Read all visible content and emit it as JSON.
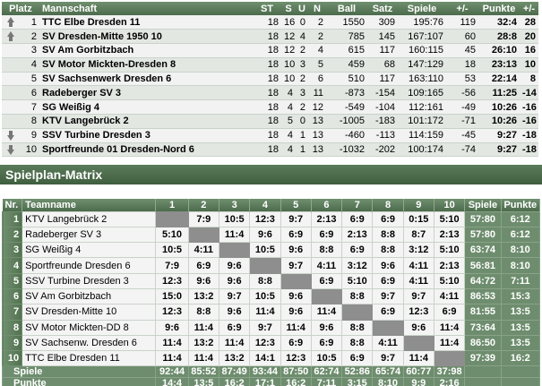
{
  "standings": {
    "headers": [
      "Platz",
      "Mannschaft",
      "ST",
      "S",
      "U",
      "N",
      "Ball",
      "Satz",
      "Spiele",
      "+/-",
      "Punkte",
      "+/-"
    ],
    "rows": [
      {
        "trend": "up",
        "place": "1",
        "team": "TTC Elbe Dresden 11",
        "st": "18",
        "s": "16",
        "u": "0",
        "n": "2",
        "ball": "1550",
        "satz": "309",
        "spiele": "195:76",
        "diff": "119",
        "punkte": "32:4",
        "pdiff": "28"
      },
      {
        "trend": "up",
        "place": "2",
        "team": "SV Dresden-Mitte 1950 10",
        "st": "18",
        "s": "12",
        "u": "4",
        "n": "2",
        "ball": "785",
        "satz": "145",
        "spiele": "167:107",
        "diff": "60",
        "punkte": "28:8",
        "pdiff": "20"
      },
      {
        "trend": "",
        "place": "3",
        "team": "SV Am Gorbitzbach",
        "st": "18",
        "s": "12",
        "u": "2",
        "n": "4",
        "ball": "615",
        "satz": "117",
        "spiele": "160:115",
        "diff": "45",
        "punkte": "26:10",
        "pdiff": "16"
      },
      {
        "trend": "",
        "place": "4",
        "team": "SV Motor Mickten-Dresden 8",
        "st": "18",
        "s": "10",
        "u": "3",
        "n": "5",
        "ball": "459",
        "satz": "68",
        "spiele": "147:129",
        "diff": "18",
        "punkte": "23:13",
        "pdiff": "10"
      },
      {
        "trend": "",
        "place": "5",
        "team": "SV Sachsenwerk Dresden 6",
        "st": "18",
        "s": "10",
        "u": "2",
        "n": "6",
        "ball": "510",
        "satz": "117",
        "spiele": "163:110",
        "diff": "53",
        "punkte": "22:14",
        "pdiff": "8"
      },
      {
        "trend": "",
        "place": "6",
        "team": "Radeberger SV 3",
        "st": "18",
        "s": "4",
        "u": "3",
        "n": "11",
        "ball": "-873",
        "satz": "-154",
        "spiele": "109:165",
        "diff": "-56",
        "punkte": "11:25",
        "pdiff": "-14"
      },
      {
        "trend": "",
        "place": "7",
        "team": "SG Weißig 4",
        "st": "18",
        "s": "4",
        "u": "2",
        "n": "12",
        "ball": "-549",
        "satz": "-104",
        "spiele": "112:161",
        "diff": "-49",
        "punkte": "10:26",
        "pdiff": "-16"
      },
      {
        "trend": "",
        "place": "8",
        "team": "KTV Langebrück 2",
        "st": "18",
        "s": "5",
        "u": "0",
        "n": "13",
        "ball": "-1005",
        "satz": "-183",
        "spiele": "101:172",
        "diff": "-71",
        "punkte": "10:26",
        "pdiff": "-16"
      },
      {
        "trend": "down",
        "place": "9",
        "team": "SSV Turbine Dresden 3",
        "st": "18",
        "s": "4",
        "u": "1",
        "n": "13",
        "ball": "-460",
        "satz": "-113",
        "spiele": "114:159",
        "diff": "-45",
        "punkte": "9:27",
        "pdiff": "-18"
      },
      {
        "trend": "down",
        "place": "10",
        "team": "Sportfreunde 01 Dresden-Nord 6",
        "st": "18",
        "s": "4",
        "u": "1",
        "n": "13",
        "ball": "-1032",
        "satz": "-202",
        "spiele": "100:174",
        "diff": "-74",
        "punkte": "9:27",
        "pdiff": "-18"
      }
    ]
  },
  "section_title": "Spielplan-Matrix",
  "matrix": {
    "headers": [
      "Nr.",
      "Teamname",
      "1",
      "2",
      "3",
      "4",
      "5",
      "6",
      "7",
      "8",
      "9",
      "10",
      "Spiele",
      "Punkte"
    ],
    "rows": [
      {
        "nr": "1",
        "team": "KTV Langebrück 2",
        "cells": [
          "",
          "7:9",
          "10:5",
          "12:3",
          "9:7",
          "2:13",
          "6:9",
          "6:9",
          "0:15",
          "5:10"
        ],
        "spiele": "57:80",
        "punkte": "6:12"
      },
      {
        "nr": "2",
        "team": "Radeberger SV 3",
        "cells": [
          "5:10",
          "",
          "11:4",
          "9:6",
          "6:9",
          "6:9",
          "2:13",
          "8:8",
          "8:7",
          "2:13"
        ],
        "spiele": "57:80",
        "punkte": "6:12"
      },
      {
        "nr": "3",
        "team": "SG Weißig 4",
        "cells": [
          "10:5",
          "4:11",
          "",
          "10:5",
          "9:6",
          "8:8",
          "6:9",
          "8:8",
          "3:12",
          "5:10"
        ],
        "spiele": "63:74",
        "punkte": "8:10"
      },
      {
        "nr": "4",
        "team": "Sportfreunde Dresden 6",
        "cells": [
          "7:9",
          "6:9",
          "9:6",
          "",
          "9:7",
          "4:11",
          "3:12",
          "9:6",
          "4:11",
          "2:13"
        ],
        "spiele": "56:81",
        "punkte": "8:10"
      },
      {
        "nr": "5",
        "team": "SSV Turbine Dresden 3",
        "cells": [
          "12:3",
          "9:6",
          "9:6",
          "8:8",
          "",
          "6:9",
          "5:10",
          "6:9",
          "4:11",
          "5:10"
        ],
        "spiele": "64:72",
        "punkte": "7:11"
      },
      {
        "nr": "6",
        "team": "SV Am Gorbitzbach",
        "cells": [
          "15:0",
          "13:2",
          "9:7",
          "10:5",
          "9:6",
          "",
          "8:8",
          "9:7",
          "9:7",
          "4:11"
        ],
        "spiele": "86:53",
        "punkte": "15:3"
      },
      {
        "nr": "7",
        "team": "SV Dresden-Mitte 10",
        "cells": [
          "12:3",
          "8:8",
          "9:6",
          "11:4",
          "9:6",
          "11:4",
          "",
          "6:9",
          "12:3",
          "6:9"
        ],
        "spiele": "81:55",
        "punkte": "13:5"
      },
      {
        "nr": "8",
        "team": "SV Motor Mickten-DD 8",
        "cells": [
          "9:6",
          "11:4",
          "6:9",
          "9:7",
          "11:4",
          "9:6",
          "8:8",
          "",
          "9:6",
          "11:4"
        ],
        "spiele": "73:64",
        "punkte": "13:5"
      },
      {
        "nr": "9",
        "team": "SV Sachsenw. Dresden 6",
        "cells": [
          "11:4",
          "13:2",
          "11:4",
          "12:3",
          "6:9",
          "6:9",
          "8:8",
          "4:11",
          "",
          "11:4"
        ],
        "spiele": "86:50",
        "punkte": "13:5"
      },
      {
        "nr": "10",
        "team": "TTC Elbe Dresden 11",
        "cells": [
          "11:4",
          "11:4",
          "13:2",
          "14:1",
          "12:3",
          "10:5",
          "6:9",
          "9:7",
          "11:4",
          ""
        ],
        "spiele": "97:39",
        "punkte": "16:2"
      }
    ],
    "footer_spiele": {
      "label": "Spiele",
      "values": [
        "92:44",
        "85:52",
        "87:49",
        "93:44",
        "87:50",
        "62:74",
        "52:86",
        "65:74",
        "60:77",
        "37:98"
      ]
    },
    "footer_punkte": {
      "label": "Punkte",
      "values": [
        "14:4",
        "13:5",
        "16:2",
        "17:1",
        "16:2",
        "7:11",
        "3:15",
        "8:10",
        "9:9",
        "2:16"
      ]
    }
  },
  "icons": {
    "trend_up": "arrow-up-icon",
    "trend_down": "arrow-down-icon"
  },
  "colors": {
    "header_green": "#5b7c5b",
    "diagonal_gray": "#8e8e8e",
    "row_light": "#f2f2f2",
    "row_dark": "#e2e7e2"
  }
}
